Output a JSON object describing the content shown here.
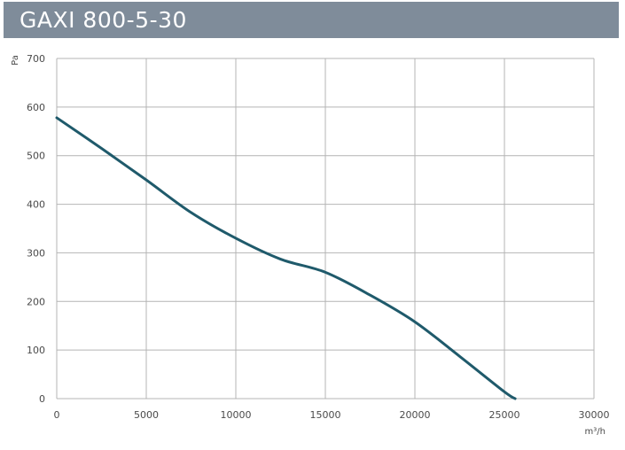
{
  "header": {
    "title": "GAXI 800-5-30"
  },
  "colors": {
    "title_bar": "#7f8c9a",
    "grid": "#b4b4b4",
    "curve": "#1f5a6b",
    "text": "#4a4a4a"
  },
  "chart_data": {
    "type": "line",
    "title": "GAXI 800-5-30",
    "xlabel": "m³/h",
    "ylabel": "Pa",
    "xlim": [
      0,
      30000
    ],
    "ylim": [
      0,
      700
    ],
    "x_ticks": [
      0,
      5000,
      10000,
      15000,
      20000,
      25000,
      30000
    ],
    "y_ticks": [
      0,
      100,
      200,
      300,
      400,
      500,
      600,
      700
    ],
    "grid": true,
    "series": [
      {
        "x": [
          0,
          2500,
          5000,
          7500,
          10000,
          12500,
          15000,
          17500,
          20000,
          22500,
          25000,
          25600
        ],
        "y": [
          578,
          515,
          450,
          383,
          330,
          287,
          260,
          213,
          158,
          87,
          14,
          0
        ]
      }
    ]
  }
}
